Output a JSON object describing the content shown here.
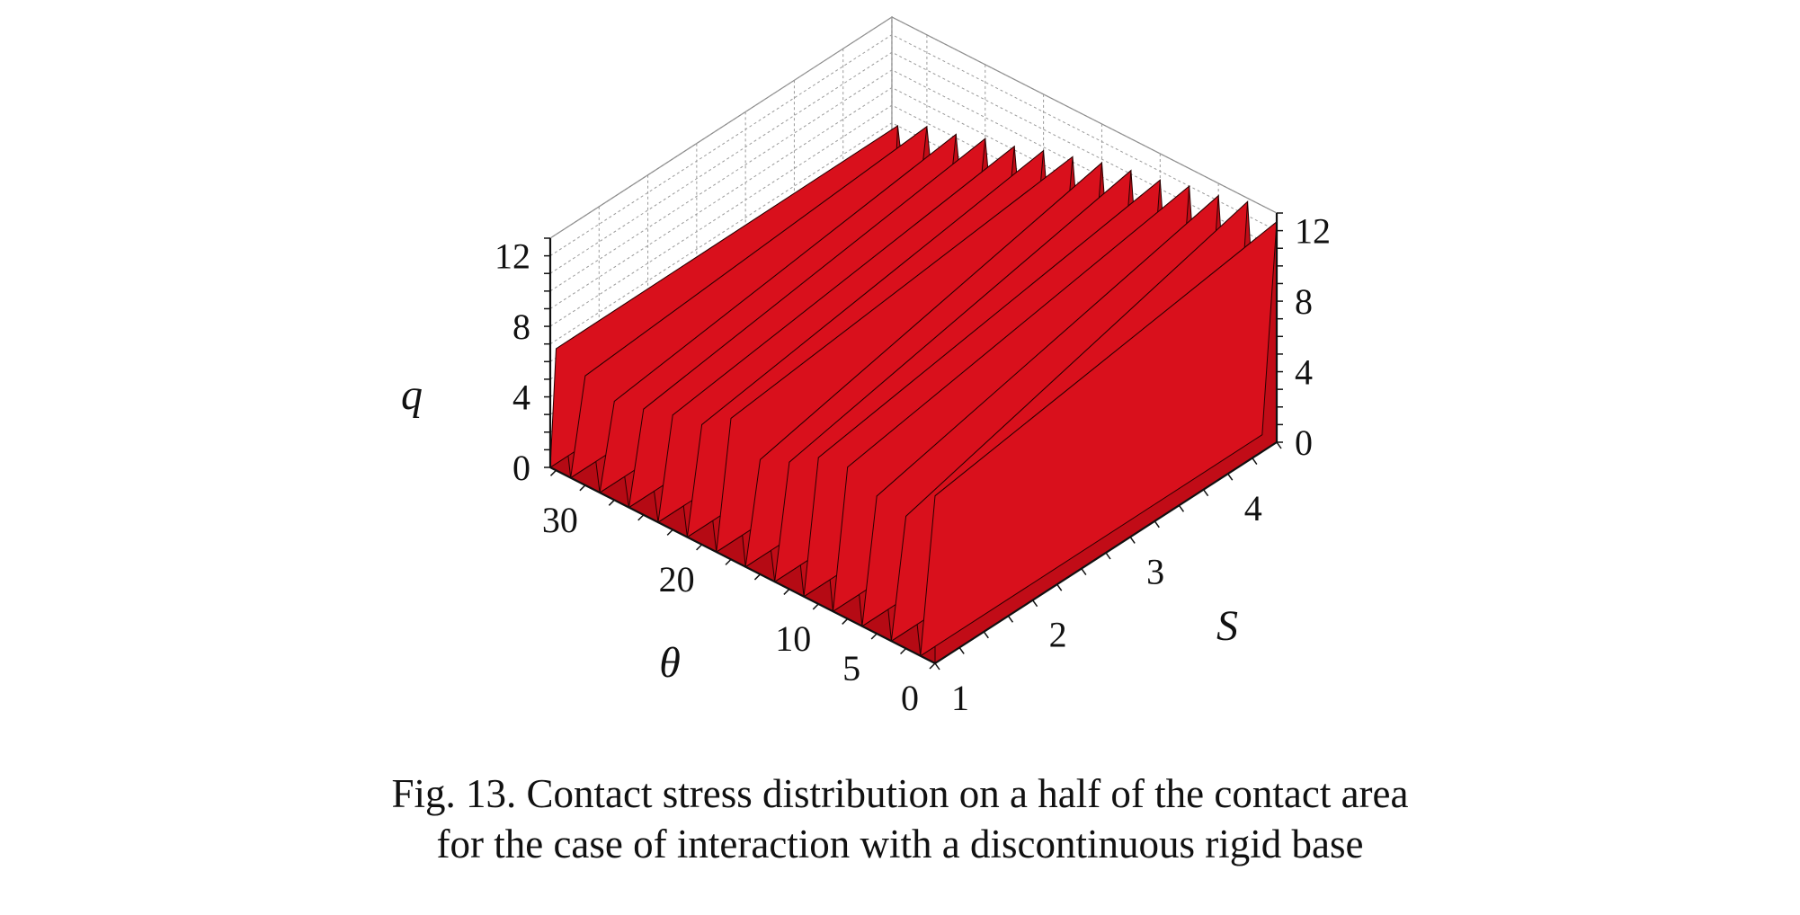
{
  "chart_data": {
    "type": "surface3d",
    "title": "",
    "xlabel": "S",
    "ylabel": "θ",
    "zlabel": "q",
    "x_ticks": [
      "1",
      "2",
      "3",
      "4"
    ],
    "y_ticks": [
      "0",
      "5",
      "10",
      "20",
      "30"
    ],
    "z_ticks": [
      "0",
      "4",
      "8",
      "12"
    ],
    "xlim": [
      1,
      4.5
    ],
    "ylim": [
      0,
      33
    ],
    "zlim": [
      0,
      13
    ],
    "grid": true,
    "surface_color": "#d9101c",
    "theta_spikes": [
      0,
      2.5,
      5,
      7.5,
      10,
      12.5,
      15,
      17.5,
      20,
      22.5,
      25,
      27.5,
      30,
      32.5
    ],
    "peak_at_s_min": [
      9.5,
      7.5,
      7.8,
      8.6,
      8.3,
      7.2,
      6.5,
      8.0,
      6.8,
      6.5,
      6.0,
      5.6,
      6.2,
      6.9
    ],
    "peak_at_s_max": [
      12.5,
      12.8,
      12.3,
      12.0,
      11.5,
      11.2,
      10.8,
      10.3,
      9.8,
      9.2,
      8.8,
      8.2,
      7.8,
      7.0
    ]
  },
  "caption": {
    "line1": "Fig. 13. Contact stress distribution on a half of the contact area",
    "line2": "for the case of interaction with a discontinuous rigid base"
  }
}
